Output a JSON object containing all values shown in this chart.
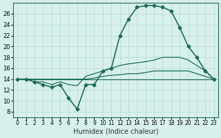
{
  "xlabel": "Humidex (Indice chaleur)",
  "ylabel": "",
  "background_color": "#d8f0ec",
  "grid_color": "#b0d8d0",
  "line_color": "#1a6b5a",
  "xlim": [
    -0.5,
    23.5
  ],
  "ylim": [
    7,
    28
  ],
  "yticks": [
    8,
    10,
    12,
    14,
    16,
    18,
    20,
    22,
    24,
    26
  ],
  "xtick_labels": [
    "0",
    "1",
    "2",
    "3",
    "4",
    "5",
    "6",
    "7",
    "8",
    "9",
    "10",
    "11",
    "12",
    "13",
    "14",
    "15",
    "16",
    "17",
    "18",
    "19",
    "20",
    "21",
    "22",
    "23"
  ],
  "series": [
    [
      14,
      14,
      13.5,
      13,
      12.5,
      13,
      10.5,
      8.5,
      13,
      13,
      15.5,
      16,
      22,
      25,
      27.2,
      27.5,
      27.5,
      27.2,
      26.5,
      23.5,
      20,
      18,
      15.5,
      14
    ],
    [
      14,
      14,
      13.5,
      13.5,
      13,
      13.5,
      13,
      12.8,
      14.5,
      15,
      15.5,
      16,
      16.5,
      16.8,
      17,
      17.2,
      17.5,
      18,
      18,
      18,
      17.5,
      16.5,
      15.5,
      14
    ],
    [
      14,
      14,
      14,
      14,
      14,
      14,
      14,
      14,
      14,
      14.2,
      14.5,
      14.7,
      14.8,
      15,
      15,
      15.2,
      15.5,
      15.5,
      15.5,
      15.5,
      15.5,
      15,
      14.5,
      14
    ],
    [
      14,
      14,
      14,
      14,
      14,
      14,
      14,
      14,
      14,
      14,
      14,
      14,
      14,
      14,
      14,
      14,
      14,
      14,
      14,
      14,
      14,
      14,
      14,
      14
    ]
  ]
}
